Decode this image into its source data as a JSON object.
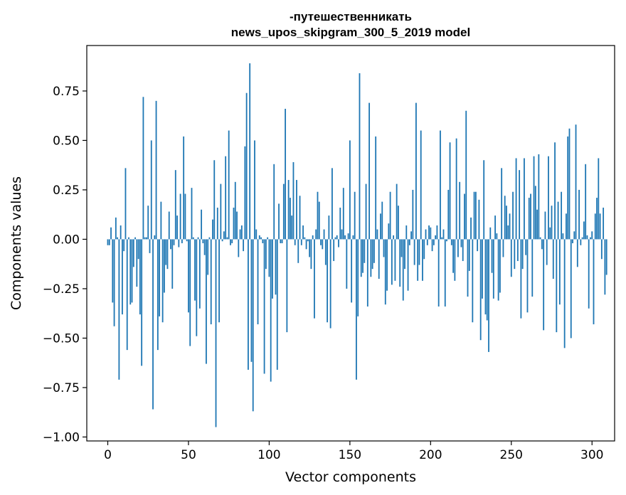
{
  "chart_data": {
    "type": "bar",
    "title_lines": [
      "-путешественникать",
      "news_upos_skipgram_300_5_2019 model"
    ],
    "xlabel": "Vector components",
    "ylabel": "Components values",
    "xlim": [
      -13,
      314
    ],
    "ylim": [
      -1.02,
      0.98
    ],
    "xticks": [
      0,
      50,
      100,
      150,
      200,
      250,
      300
    ],
    "xtick_labels": [
      "0",
      "50",
      "100",
      "150",
      "200",
      "250",
      "300"
    ],
    "yticks": [
      -1.0,
      -0.75,
      -0.5,
      -0.25,
      0.0,
      0.25,
      0.5,
      0.75
    ],
    "ytick_labels": [
      "−1.00",
      "−0.75",
      "−0.50",
      "−0.25",
      "0.00",
      "0.25",
      "0.50",
      "0.75"
    ],
    "grid": false,
    "bar_color": "#1f77b4",
    "x_start": 0,
    "values": [
      -0.03,
      -0.03,
      0.06,
      -0.32,
      -0.44,
      0.11,
      0.01,
      -0.71,
      0.07,
      -0.38,
      -0.06,
      0.36,
      -0.56,
      0.01,
      -0.33,
      -0.32,
      -0.14,
      0.01,
      -0.24,
      -0.1,
      -0.38,
      -0.64,
      0.72,
      0.01,
      0.01,
      0.17,
      -0.07,
      0.5,
      -0.86,
      0.02,
      0.7,
      -0.56,
      -0.39,
      0.19,
      -0.42,
      -0.27,
      -0.13,
      -0.15,
      0.14,
      -0.05,
      -0.25,
      -0.03,
      0.35,
      0.12,
      -0.04,
      0.23,
      -0.02,
      0.52,
      0.23,
      -0.01,
      -0.37,
      -0.54,
      0.26,
      0.01,
      -0.31,
      -0.49,
      0.01,
      -0.35,
      0.15,
      -0.02,
      -0.08,
      -0.63,
      -0.18,
      0.01,
      -0.43,
      0.1,
      0.4,
      -0.95,
      0.16,
      -0.42,
      0.28,
      -0.01,
      0.04,
      0.42,
      0.01,
      0.55,
      -0.03,
      -0.02,
      0.16,
      0.29,
      0.14,
      -0.09,
      0.05,
      0.07,
      -0.06,
      0.47,
      0.74,
      -0.66,
      0.89,
      -0.62,
      -0.87,
      0.5,
      0.05,
      -0.43,
      0.02,
      0.01,
      -0.02,
      -0.68,
      -0.15,
      0.01,
      -0.19,
      -0.72,
      -0.3,
      0.38,
      -0.28,
      -0.66,
      0.18,
      -0.02,
      -0.02,
      0.28,
      0.66,
      -0.47,
      0.3,
      0.21,
      0.12,
      0.39,
      -0.03,
      0.3,
      -0.12,
      0.22,
      -0.03,
      0.07,
      0.01,
      -0.05,
      -0.01,
      -0.09,
      -0.15,
      0.02,
      -0.4,
      0.05,
      0.24,
      0.19,
      -0.03,
      -0.05,
      0.05,
      -0.13,
      -0.42,
      0.12,
      -0.45,
      0.36,
      -0.11,
      0.01,
      0.02,
      -0.04,
      0.16,
      0.05,
      0.26,
      0.02,
      -0.25,
      0.03,
      0.5,
      -0.32,
      0.02,
      0.24,
      -0.71,
      -0.39,
      0.84,
      -0.19,
      -0.17,
      -0.12,
      0.28,
      -0.34,
      0.69,
      -0.19,
      -0.15,
      -0.12,
      0.52,
      0.05,
      -0.2,
      0.13,
      0.19,
      -0.09,
      -0.33,
      -0.26,
      0.08,
      0.24,
      -0.23,
      0.02,
      -0.21,
      0.28,
      0.17,
      -0.24,
      -0.09,
      -0.31,
      -0.15,
      0.07,
      -0.26,
      -0.03,
      0.04,
      0.25,
      -0.13,
      0.69,
      -0.21,
      -0.13,
      0.55,
      -0.21,
      -0.1,
      0.05,
      -0.03,
      0.07,
      0.06,
      -0.06,
      -0.03,
      0.02,
      0.07,
      -0.34,
      0.55,
      0.01,
      0.05,
      -0.34,
      -0.01,
      0.25,
      0.49,
      -0.03,
      -0.17,
      -0.21,
      0.51,
      -0.09,
      0.29,
      -0.04,
      -0.11,
      0.23,
      0.65,
      -0.29,
      -0.16,
      0.11,
      -0.42,
      0.24,
      0.24,
      -0.06,
      0.2,
      -0.51,
      -0.3,
      0.4,
      -0.38,
      -0.41,
      -0.57,
      0.06,
      -0.17,
      -0.3,
      0.12,
      0.03,
      -0.31,
      -0.27,
      0.36,
      -0.09,
      0.22,
      0.17,
      0.07,
      0.13,
      -0.19,
      0.24,
      -0.15,
      0.41,
      -0.11,
      0.35,
      -0.4,
      -0.15,
      0.41,
      -0.08,
      -0.37,
      0.21,
      0.23,
      -0.29,
      0.42,
      0.27,
      0.15,
      0.43,
      0.01,
      -0.05,
      -0.46,
      0.14,
      -0.13,
      0.42,
      0.06,
      0.17,
      -0.2,
      0.49,
      -0.47,
      0.19,
      -0.33,
      0.24,
      0.03,
      -0.55,
      0.13,
      0.52,
      0.56,
      -0.5,
      -0.02,
      0.04,
      0.58,
      -0.14,
      0.25,
      -0.03,
      0.01,
      0.09,
      0.38,
      0.02,
      -0.35,
      0.01,
      0.04,
      -0.43,
      0.13,
      0.21,
      0.41,
      0.13,
      -0.1,
      0.16,
      -0.28,
      -0.18
    ]
  }
}
